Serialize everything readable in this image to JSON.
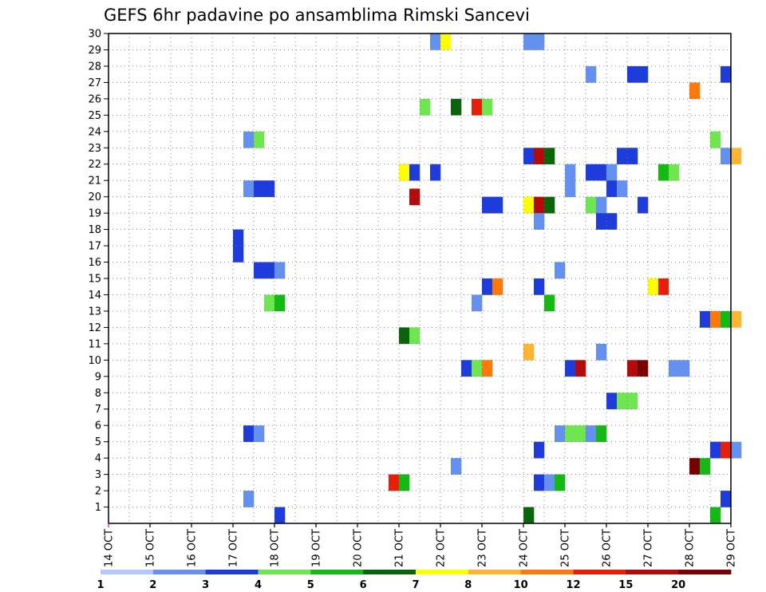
{
  "chart_data": {
    "type": "heatmap",
    "title": "GEFS 6hr padavine po ansamblima Rimski Sancevi",
    "y_ticks": [
      "1",
      "2",
      "3",
      "4",
      "5",
      "6",
      "7",
      "8",
      "9",
      "10",
      "11",
      "12",
      "13",
      "14",
      "15",
      "16",
      "17",
      "18",
      "19",
      "20",
      "21",
      "22",
      "23",
      "24",
      "25",
      "26",
      "27",
      "28",
      "29",
      "30"
    ],
    "x_ticks": [
      "14 OCT",
      "15 OCT",
      "16 OCT",
      "17 OCT",
      "18 OCT",
      "19 OCT",
      "20 OCT",
      "21 OCT",
      "22 OCT",
      "23 OCT",
      "24 OCT",
      "25 OCT",
      "26 OCT",
      "27 OCT",
      "28 OCT",
      "29 OCT"
    ],
    "x_range_days": [
      0,
      15
    ],
    "y_range": [
      0,
      30
    ],
    "step_days": 0.25,
    "colorbar": {
      "colors": [
        "#b4c8ff",
        "#6490f0",
        "#1e3cdc",
        "#6ee650",
        "#14b914",
        "#0a640a",
        "#ffff00",
        "#ffb432",
        "#ff780a",
        "#e61e0a",
        "#b40a0a",
        "#780000"
      ],
      "ticks": [
        "1",
        "2",
        "3",
        "4",
        "5",
        "6",
        "7",
        "8",
        "10",
        "12",
        "15",
        "20"
      ]
    },
    "cells": [
      [
        7.75,
        30,
        1
      ],
      [
        8.0,
        30,
        6
      ],
      [
        10.0,
        30,
        1
      ],
      [
        10.25,
        30,
        1
      ],
      [
        11.5,
        28,
        1
      ],
      [
        12.5,
        28,
        2
      ],
      [
        12.75,
        28,
        2
      ],
      [
        14.75,
        28,
        2
      ],
      [
        14.0,
        27,
        8
      ],
      [
        7.5,
        26,
        3
      ],
      [
        8.25,
        26,
        5
      ],
      [
        8.75,
        26,
        9
      ],
      [
        9.0,
        26,
        3
      ],
      [
        3.25,
        24,
        1
      ],
      [
        3.5,
        24,
        3
      ],
      [
        14.5,
        24,
        3
      ],
      [
        10.0,
        23,
        2
      ],
      [
        10.25,
        23,
        10
      ],
      [
        10.5,
        23,
        5
      ],
      [
        12.25,
        23,
        2
      ],
      [
        12.5,
        23,
        2
      ],
      [
        14.75,
        23,
        1
      ],
      [
        15.0,
        23,
        7
      ],
      [
        7.0,
        22,
        6
      ],
      [
        7.25,
        22,
        2
      ],
      [
        7.75,
        22,
        2
      ],
      [
        11.0,
        22,
        1
      ],
      [
        11.5,
        22,
        2
      ],
      [
        11.75,
        22,
        2
      ],
      [
        12.0,
        22,
        1
      ],
      [
        13.25,
        22,
        4
      ],
      [
        13.5,
        22,
        3
      ],
      [
        3.25,
        21,
        1
      ],
      [
        3.5,
        21,
        2
      ],
      [
        3.75,
        21,
        2
      ],
      [
        7.25,
        20.5,
        10
      ],
      [
        11.0,
        21,
        1
      ],
      [
        12.0,
        21,
        2
      ],
      [
        12.25,
        21,
        1
      ],
      [
        9.0,
        20,
        2
      ],
      [
        9.25,
        20,
        2
      ],
      [
        10.0,
        20,
        6
      ],
      [
        10.25,
        20,
        10
      ],
      [
        10.5,
        20,
        5
      ],
      [
        11.5,
        20,
        3
      ],
      [
        11.75,
        20,
        1
      ],
      [
        12.75,
        20,
        2
      ],
      [
        10.25,
        19,
        1
      ],
      [
        11.75,
        19,
        2
      ],
      [
        12.0,
        19,
        2
      ],
      [
        3.0,
        18,
        2
      ],
      [
        3.0,
        17,
        2
      ],
      [
        3.5,
        16,
        2
      ],
      [
        3.75,
        16,
        2
      ],
      [
        4.0,
        16,
        1
      ],
      [
        10.75,
        16,
        1
      ],
      [
        9.0,
        15,
        2
      ],
      [
        9.25,
        15,
        8
      ],
      [
        10.25,
        15,
        2
      ],
      [
        13.0,
        15,
        6
      ],
      [
        13.25,
        15,
        9
      ],
      [
        3.75,
        14,
        3
      ],
      [
        4.0,
        14,
        4
      ],
      [
        8.75,
        14,
        1
      ],
      [
        10.5,
        14,
        4
      ],
      [
        14.25,
        13,
        2
      ],
      [
        14.5,
        13,
        8
      ],
      [
        14.75,
        13,
        4
      ],
      [
        15.0,
        13,
        7
      ],
      [
        7.0,
        12,
        5
      ],
      [
        7.25,
        12,
        3
      ],
      [
        10.0,
        11,
        7
      ],
      [
        11.75,
        11,
        1
      ],
      [
        8.5,
        10,
        2
      ],
      [
        8.75,
        10,
        3
      ],
      [
        9.0,
        10,
        8
      ],
      [
        11.0,
        10,
        2
      ],
      [
        11.25,
        10,
        10
      ],
      [
        12.5,
        10,
        10
      ],
      [
        12.75,
        10,
        11
      ],
      [
        13.5,
        10,
        1
      ],
      [
        13.75,
        10,
        1
      ],
      [
        12.0,
        8,
        2
      ],
      [
        12.25,
        8,
        3
      ],
      [
        12.5,
        8,
        3
      ],
      [
        3.25,
        6,
        2
      ],
      [
        3.5,
        6,
        1
      ],
      [
        10.75,
        6,
        1
      ],
      [
        11.0,
        6,
        3
      ],
      [
        11.25,
        6,
        3
      ],
      [
        11.5,
        6,
        1
      ],
      [
        11.75,
        6,
        4
      ],
      [
        10.25,
        5,
        2
      ],
      [
        14.5,
        5,
        2
      ],
      [
        14.75,
        5,
        9
      ],
      [
        15.0,
        5,
        1
      ],
      [
        8.25,
        4,
        1
      ],
      [
        14.0,
        4,
        11
      ],
      [
        14.25,
        4,
        4
      ],
      [
        6.75,
        3,
        9
      ],
      [
        7.0,
        3,
        4
      ],
      [
        10.25,
        3,
        2
      ],
      [
        10.5,
        3,
        1
      ],
      [
        10.75,
        3,
        4
      ],
      [
        3.25,
        2,
        1
      ],
      [
        14.75,
        2,
        2
      ],
      [
        4.0,
        1,
        2
      ],
      [
        10.0,
        1,
        5
      ],
      [
        14.5,
        1,
        4
      ]
    ]
  }
}
